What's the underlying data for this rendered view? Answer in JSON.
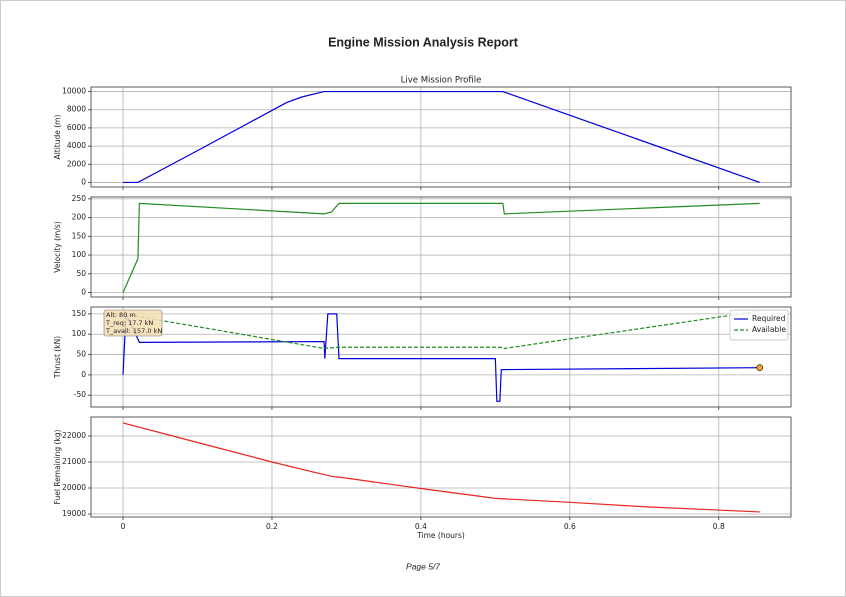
{
  "title": "Engine Mission Analysis Report",
  "page_label": "Page 5/7",
  "chart_data": [
    {
      "type": "line",
      "title": "Live Mission Profile",
      "ylabel": "Altitude (m)",
      "grid": true,
      "xlim": [
        -0.043,
        0.897
      ],
      "xticks": [
        0,
        0.2,
        0.4,
        0.6,
        0.8
      ],
      "ylim": [
        -500,
        10500
      ],
      "yticks": [
        0,
        2000,
        4000,
        6000,
        8000,
        10000
      ],
      "series": [
        {
          "name": "Altitude",
          "color": "#0000dd",
          "x": [
            0,
            0.02,
            0.1,
            0.2,
            0.22,
            0.24,
            0.27,
            0.51,
            0.855
          ],
          "values": [
            0,
            0,
            3500,
            7920,
            8800,
            9400,
            10000,
            10000,
            0
          ]
        }
      ]
    },
    {
      "type": "line",
      "ylabel": "Velocity (m/s)",
      "grid": true,
      "xlim": [
        -0.043,
        0.897
      ],
      "xticks": [
        0,
        0.2,
        0.4,
        0.6,
        0.8
      ],
      "ylim": [
        -12,
        255
      ],
      "yticks": [
        0,
        50,
        100,
        150,
        200,
        250
      ],
      "series": [
        {
          "name": "Velocity",
          "color": "#228b22",
          "x": [
            0,
            0.02,
            0.022,
            0.27,
            0.28,
            0.29,
            0.51,
            0.512,
            0.855
          ],
          "values": [
            0,
            90,
            238,
            210,
            215,
            238,
            238,
            210,
            238
          ]
        }
      ]
    },
    {
      "type": "line",
      "ylabel": "Thrust (kN)",
      "grid": true,
      "legend": "upper right",
      "xlim": [
        -0.043,
        0.897
      ],
      "xticks": [
        0,
        0.2,
        0.4,
        0.6,
        0.8
      ],
      "ylim": [
        -79,
        167
      ],
      "yticks": [
        -50,
        0,
        50,
        100,
        150
      ],
      "series": [
        {
          "name": "Required",
          "color": "#0000dd",
          "linestyle": "solid",
          "x": [
            0,
            0.004,
            0.022,
            0.27,
            0.271,
            0.275,
            0.287,
            0.29,
            0.5,
            0.502,
            0.506,
            0.508,
            0.855
          ],
          "values": [
            0,
            150,
            80,
            82,
            40,
            150,
            150,
            40,
            40,
            -65,
            -65,
            13,
            17.7
          ]
        },
        {
          "name": "Available",
          "color": "#228b22",
          "linestyle": "dashed",
          "x": [
            0,
            0.27,
            0.29,
            0.51,
            0.512,
            0.855
          ],
          "values": [
            150,
            65,
            68,
            68,
            65,
            157
          ]
        }
      ],
      "marker": {
        "x": 0.855,
        "y": 17.7,
        "color": "#f5a623"
      },
      "annotation": [
        "Alt: 80 m",
        "T_req: 17.7 kN",
        "T_avail: 157.0 kN"
      ]
    },
    {
      "type": "line",
      "ylabel": "Fuel Remaining (kg)",
      "xlabel": "Time (hours)",
      "grid": true,
      "xlim": [
        -0.043,
        0.897
      ],
      "xticks": [
        0,
        0.2,
        0.4,
        0.6,
        0.8
      ],
      "ylim": [
        18885,
        22730
      ],
      "yticks": [
        19000,
        20000,
        21000,
        22000
      ],
      "series": [
        {
          "name": "Fuel",
          "color": "#e8251f",
          "x": [
            0,
            0.1,
            0.2,
            0.25,
            0.28,
            0.3,
            0.4,
            0.5,
            0.6,
            0.7,
            0.855
          ],
          "values": [
            22500,
            21750,
            21000,
            20650,
            20450,
            20380,
            19980,
            19600,
            19450,
            19280,
            19080
          ]
        }
      ]
    }
  ]
}
